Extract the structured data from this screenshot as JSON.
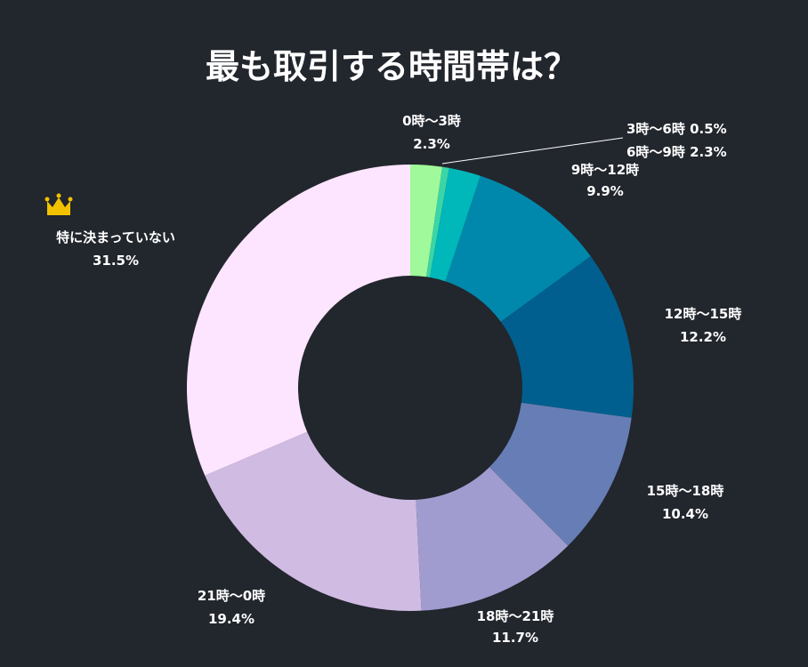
{
  "chart_data": {
    "type": "pie",
    "variant": "donut",
    "title": "最も取引する時間帯は？",
    "categories": [
      "0時〜3時",
      "3時〜6時",
      "6時〜9時",
      "9時〜12時",
      "12時〜15時",
      "15時〜18時",
      "18時〜21時",
      "21時〜0時",
      "特に決まっていない"
    ],
    "values": [
      2.3,
      0.5,
      2.3,
      9.9,
      12.2,
      10.4,
      11.7,
      19.4,
      31.5
    ],
    "value_labels": [
      "2.3%",
      "0.5%",
      "2.3%",
      "9.9%",
      "12.2%",
      "10.4%",
      "11.7%",
      "19.4%",
      "31.5%"
    ],
    "colors": [
      "#a0f99a",
      "#3ad6a8",
      "#00b7b9",
      "#0088ac",
      "#005f8e",
      "#667eb5",
      "#a09ccf",
      "#d0bbe3",
      "#fee5ff"
    ],
    "highlight_icon": "crown-icon",
    "highlight_category": "特に決まっていない",
    "highlight_color": "#f2c200"
  },
  "background_color": "#22262d"
}
